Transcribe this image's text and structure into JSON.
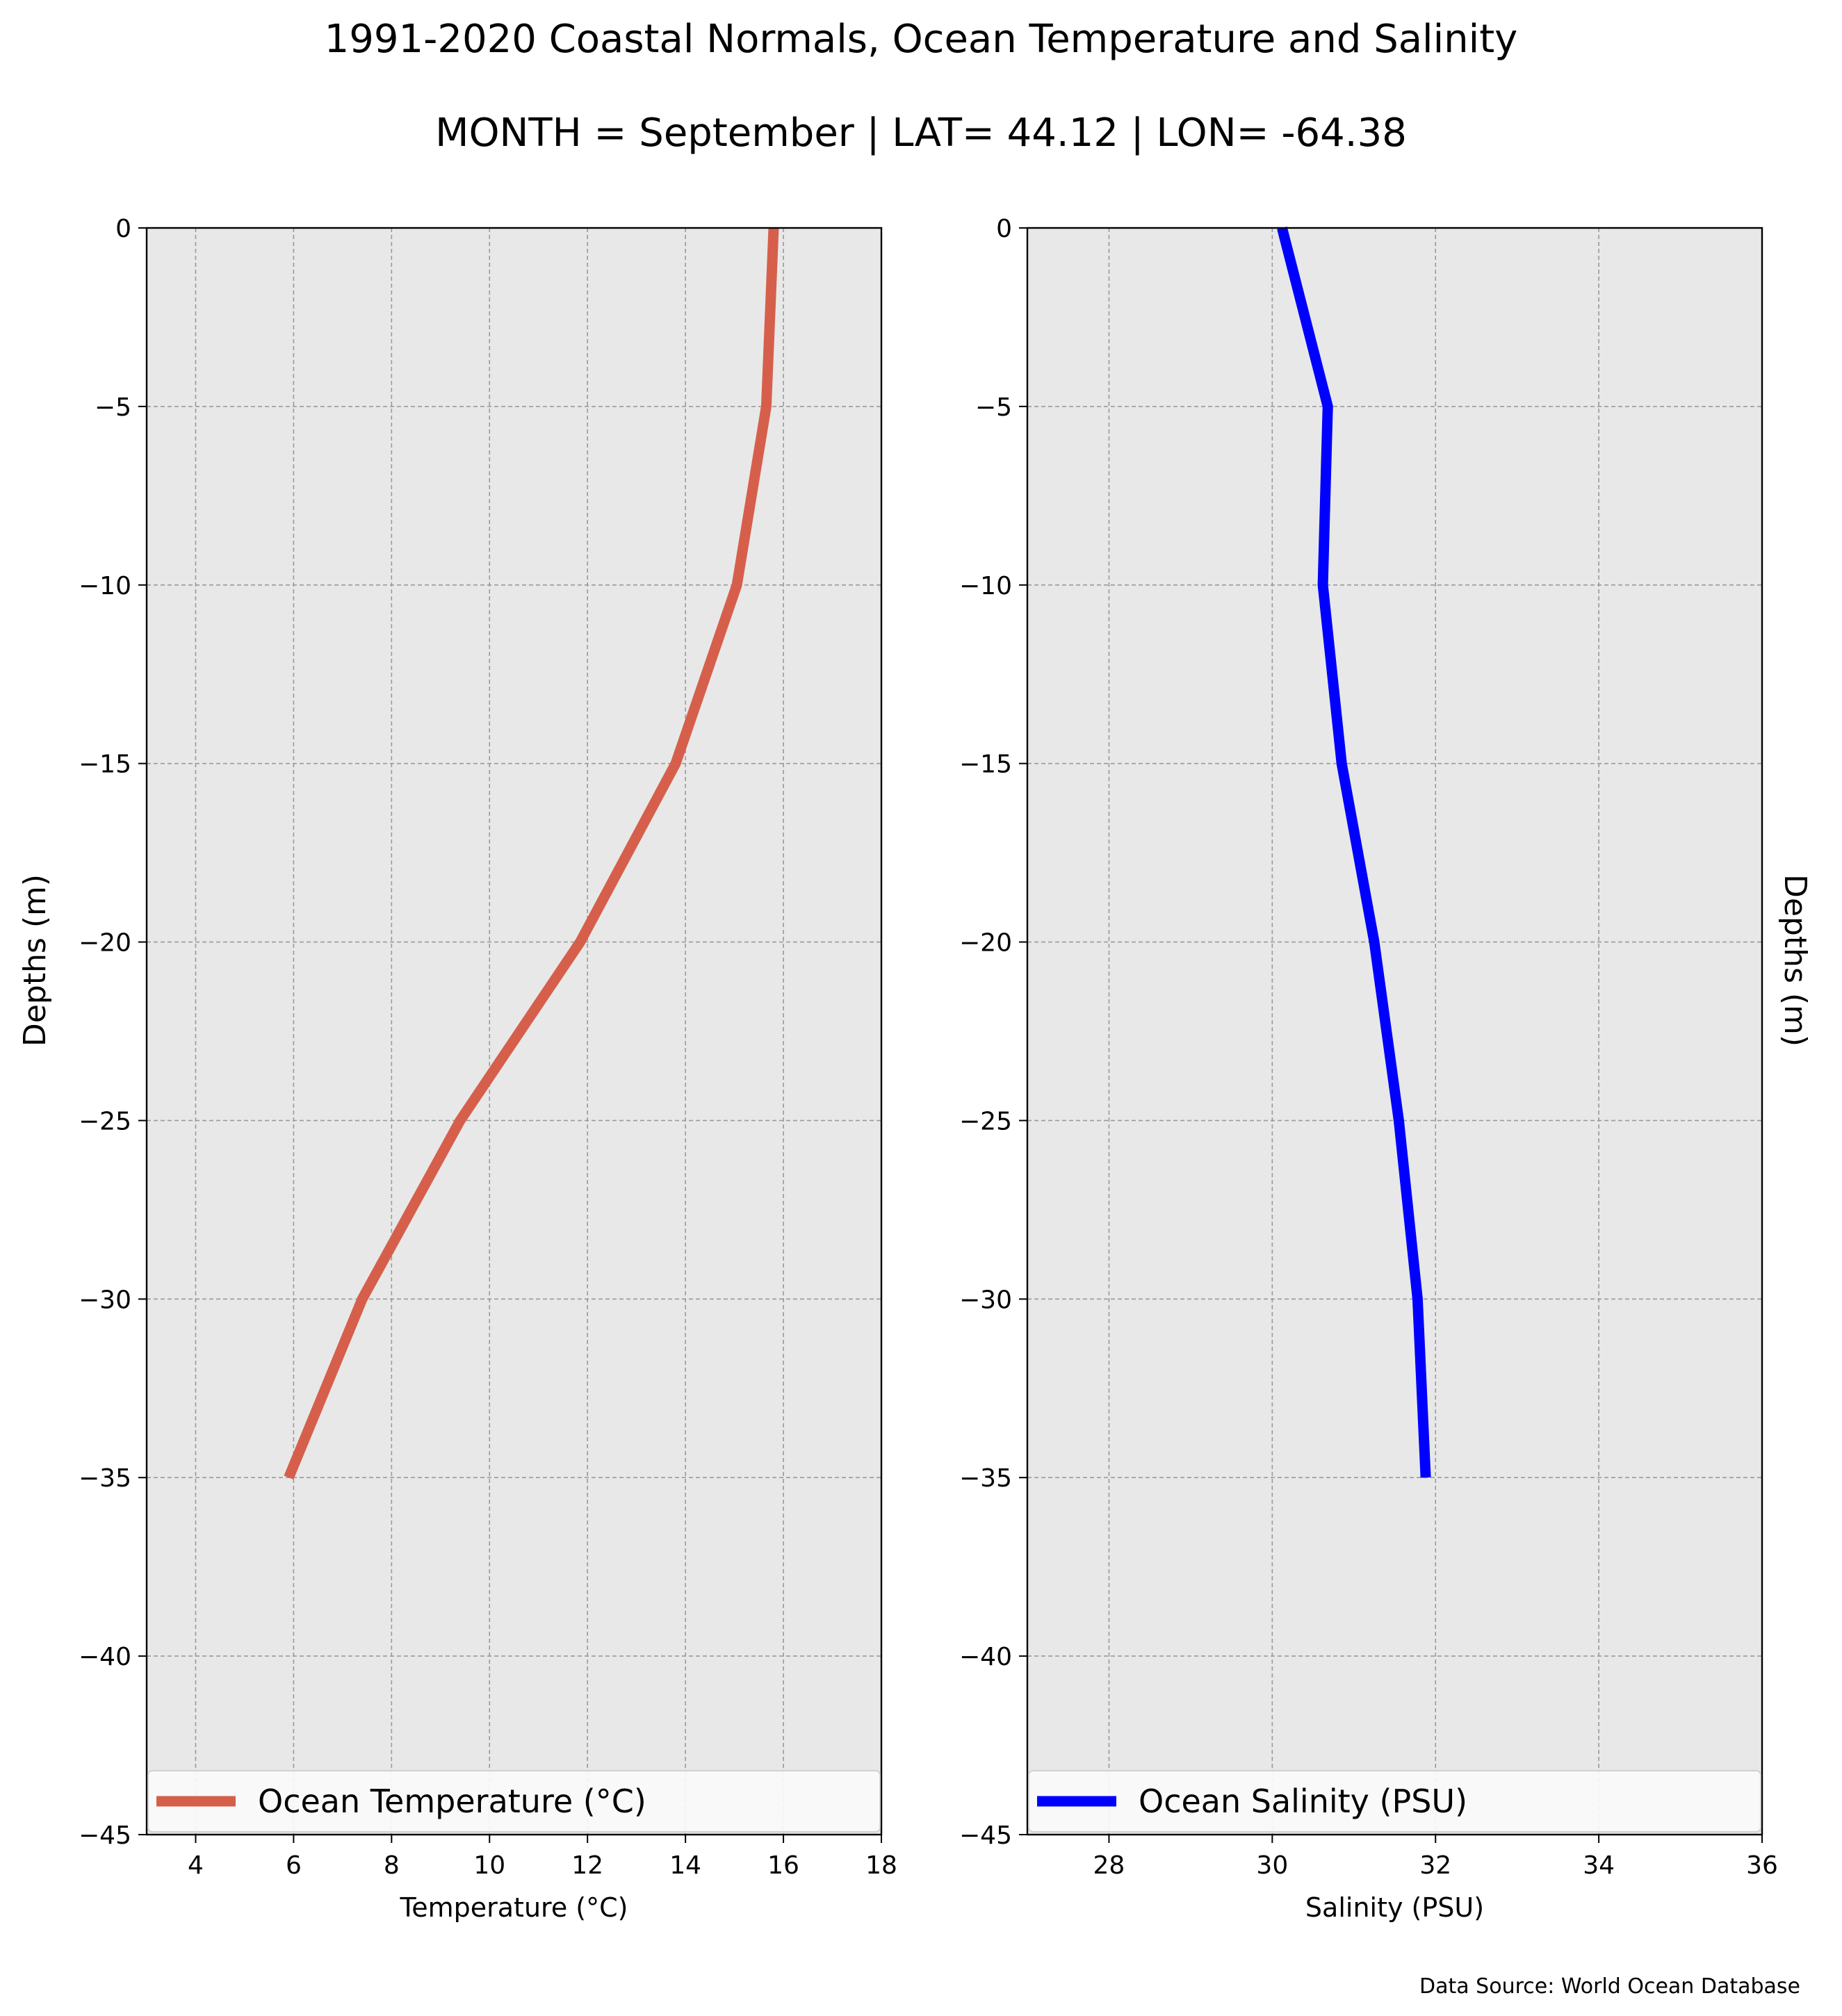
{
  "figure": {
    "title": "1991-2020 Coastal Normals, Ocean Temperature and Salinity",
    "subtitle": "MONTH = September | LAT= 44.12 | LON= -64.38",
    "source": "Data Source: World Ocean Database"
  },
  "chart_data": [
    {
      "type": "line",
      "xlabel": "Temperature (°C)",
      "ylabel": "Depths (m)",
      "xlim": [
        3,
        18
      ],
      "ylim": [
        -45,
        0
      ],
      "xticks": [
        4,
        6,
        8,
        10,
        12,
        14,
        16,
        18
      ],
      "yticks": [
        0,
        -5,
        -10,
        -15,
        -20,
        -25,
        -30,
        -35,
        -40,
        -45
      ],
      "grid": true,
      "legend_position": "bottom",
      "series": [
        {
          "name": "Ocean Temperature (°C)",
          "color": "#d65f4c",
          "x": [
            15.8,
            15.65,
            15.05,
            13.8,
            11.85,
            9.4,
            7.4,
            5.9
          ],
          "y": [
            0,
            -5,
            -10,
            -15,
            -20,
            -25,
            -30,
            -35
          ]
        }
      ]
    },
    {
      "type": "line",
      "xlabel": "Salinity (PSU)",
      "ylabel": "Depths (m)",
      "xlim": [
        27,
        36
      ],
      "ylim": [
        -45,
        0
      ],
      "xticks": [
        28,
        30,
        32,
        34,
        36
      ],
      "yticks": [
        0,
        -5,
        -10,
        -15,
        -20,
        -25,
        -30,
        -35,
        -40,
        -45
      ],
      "grid": true,
      "legend_position": "bottom",
      "series": [
        {
          "name": "Ocean Salinity (PSU)",
          "color": "#0000ff",
          "x": [
            30.12,
            30.68,
            30.62,
            30.85,
            31.25,
            31.55,
            31.78,
            31.88
          ],
          "y": [
            0,
            -5,
            -10,
            -15,
            -20,
            -25,
            -30,
            -35
          ]
        }
      ]
    }
  ]
}
